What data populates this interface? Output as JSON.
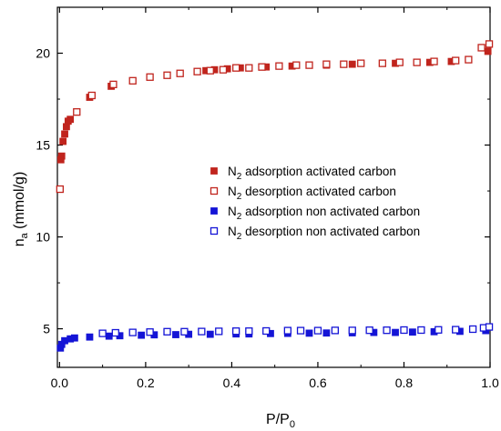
{
  "chart_data": {
    "type": "scatter",
    "xlabel": {
      "main": "P/P",
      "sub": "0"
    },
    "ylabel": {
      "main": "n",
      "sub": "a",
      "rest": " (mmol/g)"
    },
    "xlim": [
      -0.005,
      1.0
    ],
    "ylim": [
      2.9,
      22.5
    ],
    "x_ticks": [
      0.0,
      0.2,
      0.4,
      0.6,
      0.8,
      1.0
    ],
    "x_tick_labels": [
      "0.0",
      "0.2",
      "0.4",
      "0.6",
      "0.8",
      "1.0"
    ],
    "x_minor_ticks": [
      0.1,
      0.3,
      0.5,
      0.7,
      0.9
    ],
    "y_ticks": [
      5,
      10,
      15,
      20
    ],
    "y_tick_labels": [
      "5",
      "10",
      "15",
      "20"
    ],
    "y_minor_ticks": [
      2.5,
      7.5,
      12.5,
      17.5
    ],
    "grid": false,
    "legend_position": "center-right",
    "series": [
      {
        "name": "adsorption activated carbon",
        "prefix": "N",
        "prefix_sub": "2",
        "marker": "filled-square",
        "color": "#c0241d",
        "x": [
          0.003,
          0.005,
          0.008,
          0.012,
          0.016,
          0.02,
          0.025,
          0.07,
          0.12,
          0.34,
          0.36,
          0.39,
          0.42,
          0.48,
          0.54,
          0.62,
          0.68,
          0.78,
          0.86,
          0.91,
          0.995
        ],
        "y": [
          14.2,
          14.4,
          15.2,
          15.6,
          16.0,
          16.3,
          16.4,
          17.6,
          18.2,
          19.05,
          19.1,
          19.15,
          19.2,
          19.25,
          19.3,
          19.35,
          19.4,
          19.45,
          19.5,
          19.55,
          20.1
        ]
      },
      {
        "name": "desorption activated carbon",
        "prefix": "N",
        "prefix_sub": "2",
        "marker": "open-square",
        "color": "#c0241d",
        "x": [
          0.001,
          0.04,
          0.075,
          0.125,
          0.17,
          0.21,
          0.25,
          0.28,
          0.32,
          0.35,
          0.38,
          0.41,
          0.44,
          0.47,
          0.51,
          0.55,
          0.58,
          0.62,
          0.66,
          0.7,
          0.75,
          0.79,
          0.83,
          0.87,
          0.92,
          0.95,
          0.98,
          0.998
        ],
        "y": [
          12.6,
          16.8,
          17.7,
          18.3,
          18.5,
          18.7,
          18.8,
          18.9,
          19.0,
          19.05,
          19.1,
          19.2,
          19.2,
          19.25,
          19.3,
          19.35,
          19.35,
          19.4,
          19.4,
          19.45,
          19.45,
          19.5,
          19.5,
          19.55,
          19.6,
          19.65,
          20.3,
          20.5
        ]
      },
      {
        "name": "adsorption non activated carbon",
        "prefix": "N",
        "prefix_sub": "2",
        "marker": "filled-square",
        "color": "#1414d6",
        "x": [
          0.002,
          0.005,
          0.012,
          0.025,
          0.035,
          0.07,
          0.115,
          0.14,
          0.19,
          0.22,
          0.27,
          0.3,
          0.35,
          0.41,
          0.44,
          0.49,
          0.53,
          0.58,
          0.62,
          0.68,
          0.73,
          0.78,
          0.82,
          0.87,
          0.93,
          0.99
        ],
        "y": [
          3.95,
          4.15,
          4.35,
          4.45,
          4.5,
          4.55,
          4.6,
          4.62,
          4.65,
          4.67,
          4.68,
          4.7,
          4.7,
          4.72,
          4.72,
          4.74,
          4.75,
          4.76,
          4.77,
          4.78,
          4.8,
          4.8,
          4.82,
          4.84,
          4.86,
          4.9
        ]
      },
      {
        "name": "desorption non activated carbon",
        "prefix": "N",
        "prefix_sub": "2",
        "marker": "open-square",
        "color": "#1414d6",
        "x": [
          0.1,
          0.13,
          0.17,
          0.21,
          0.25,
          0.29,
          0.33,
          0.37,
          0.41,
          0.44,
          0.48,
          0.53,
          0.56,
          0.6,
          0.64,
          0.68,
          0.72,
          0.76,
          0.8,
          0.84,
          0.88,
          0.92,
          0.96,
          0.985,
          0.998
        ],
        "y": [
          4.75,
          4.78,
          4.8,
          4.82,
          4.84,
          4.84,
          4.85,
          4.86,
          4.87,
          4.87,
          4.88,
          4.9,
          4.9,
          4.9,
          4.91,
          4.91,
          4.92,
          4.92,
          4.93,
          4.93,
          4.94,
          4.95,
          4.98,
          5.05,
          5.1
        ]
      }
    ]
  }
}
